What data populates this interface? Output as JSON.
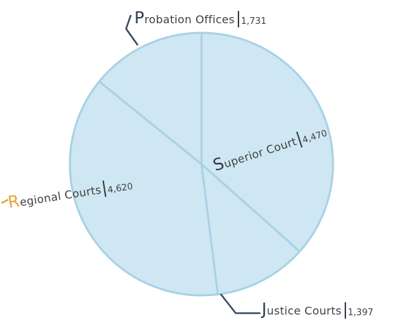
{
  "chart_data": {
    "type": "pie",
    "categories": [
      "Superior Court",
      "Justice Courts",
      "Regional Courts",
      "Probation Offices"
    ],
    "values": [
      4470,
      1397,
      4620,
      1731
    ],
    "value_labels": [
      "4,470",
      "1,397",
      "4,620",
      "1,731"
    ],
    "color": "#cfe7f3"
  }
}
